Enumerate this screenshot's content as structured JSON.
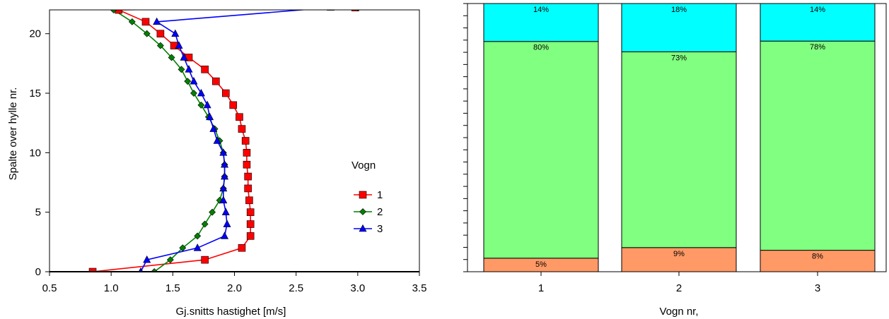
{
  "chart_data": [
    {
      "type": "line",
      "title": "",
      "xlabel": "Gj.snitts hastighet  [m/s]",
      "ylabel": "Spalte over hylle nr.",
      "xlim": [
        0.5,
        3.5
      ],
      "ylim": [
        0,
        22
      ],
      "xticks": [
        "0.5",
        "1.0",
        "1.5",
        "2.0",
        "2.5",
        "3.0",
        "3.5"
      ],
      "yticks": [
        "0",
        "5",
        "10",
        "15",
        "20"
      ],
      "grid": false,
      "legend": {
        "title": "Vogn",
        "placement": "right-middle"
      },
      "series": [
        {
          "name": "1",
          "color": "#ff0000",
          "marker": "square",
          "points": [
            [
              0.85,
              0
            ],
            [
              1.76,
              1
            ],
            [
              2.06,
              2
            ],
            [
              2.13,
              3
            ],
            [
              2.13,
              4
            ],
            [
              2.13,
              5
            ],
            [
              2.12,
              6
            ],
            [
              2.11,
              7
            ],
            [
              2.11,
              8
            ],
            [
              2.1,
              9
            ],
            [
              2.1,
              10
            ],
            [
              2.09,
              11
            ],
            [
              2.06,
              12
            ],
            [
              2.04,
              13
            ],
            [
              1.99,
              14
            ],
            [
              1.93,
              15
            ],
            [
              1.85,
              16
            ],
            [
              1.76,
              17
            ],
            [
              1.63,
              18
            ],
            [
              1.51,
              19
            ],
            [
              1.4,
              20
            ],
            [
              1.28,
              21
            ],
            [
              1.06,
              22
            ],
            [
              2.98,
              22.2
            ],
            [
              3.22,
              22.4
            ]
          ]
        },
        {
          "name": "2",
          "color": "#008000",
          "marker": "diamond",
          "points": [
            [
              1.35,
              0
            ],
            [
              1.48,
              1
            ],
            [
              1.58,
              2
            ],
            [
              1.7,
              3
            ],
            [
              1.76,
              4
            ],
            [
              1.82,
              5
            ],
            [
              1.88,
              6
            ],
            [
              1.91,
              7
            ],
            [
              1.92,
              8
            ],
            [
              1.92,
              9
            ],
            [
              1.91,
              10
            ],
            [
              1.88,
              11
            ],
            [
              1.84,
              12
            ],
            [
              1.79,
              13
            ],
            [
              1.73,
              14
            ],
            [
              1.67,
              15
            ],
            [
              1.62,
              16
            ],
            [
              1.57,
              17
            ],
            [
              1.49,
              18
            ],
            [
              1.4,
              19
            ],
            [
              1.29,
              20
            ],
            [
              1.17,
              21
            ],
            [
              1.02,
              22
            ],
            [
              3.0,
              22.2
            ],
            [
              3.35,
              22.4
            ]
          ]
        },
        {
          "name": "3",
          "color": "#0000ff",
          "marker": "triangle",
          "points": [
            [
              1.24,
              0
            ],
            [
              1.29,
              1
            ],
            [
              1.7,
              2
            ],
            [
              1.92,
              3
            ],
            [
              1.94,
              4
            ],
            [
              1.93,
              5
            ],
            [
              1.91,
              6
            ],
            [
              1.91,
              7
            ],
            [
              1.92,
              8
            ],
            [
              1.92,
              9
            ],
            [
              1.91,
              10
            ],
            [
              1.86,
              11
            ],
            [
              1.83,
              12
            ],
            [
              1.8,
              13
            ],
            [
              1.78,
              14
            ],
            [
              1.73,
              15
            ],
            [
              1.67,
              16
            ],
            [
              1.63,
              17
            ],
            [
              1.59,
              18
            ],
            [
              1.55,
              19
            ],
            [
              1.52,
              20
            ],
            [
              1.37,
              21
            ],
            [
              2.78,
              22.2
            ],
            [
              3.22,
              22.4
            ]
          ]
        }
      ]
    },
    {
      "type": "bar",
      "stacked": true,
      "title": "",
      "xlabel": "Vogn nr,",
      "ylabel": "",
      "categories": [
        "1",
        "2",
        "3"
      ],
      "segment_colors": [
        "#ff9966",
        "#80ff80",
        "#00ffff"
      ],
      "segments": [
        {
          "values": [
            5,
            9,
            8
          ],
          "labels": [
            "5%",
            "9%",
            "8%"
          ]
        },
        {
          "values": [
            80,
            73,
            78
          ],
          "labels": [
            "80%",
            "73%",
            "78%"
          ]
        },
        {
          "values": [
            14,
            18,
            14
          ],
          "labels": [
            "14%",
            "18%",
            "14%"
          ]
        }
      ]
    }
  ]
}
